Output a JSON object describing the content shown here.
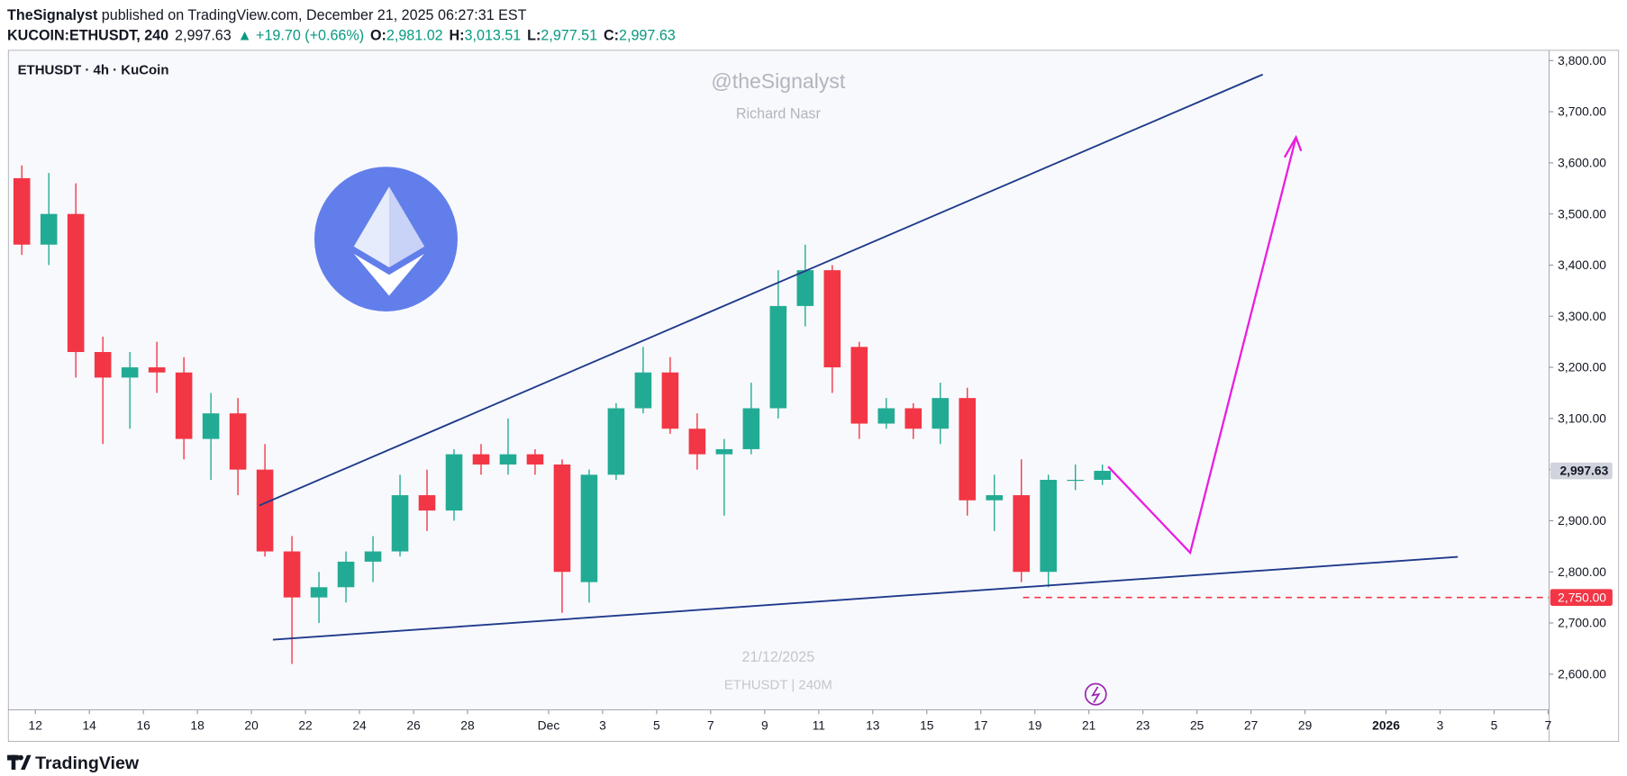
{
  "header": {
    "author": "TheSignalyst",
    "published": " published on TradingView.com, December 21, 2025 06:27:31 EST",
    "symbol": "KUCOIN:ETHUSDT, 240",
    "last": "2,997.63",
    "change": "▲ +19.70 (+0.66%)",
    "ohlc": [
      {
        "label": "O:",
        "value": "2,981.02"
      },
      {
        "label": "H:",
        "value": "3,013.51"
      },
      {
        "label": "L:",
        "value": "2,977.51"
      },
      {
        "label": "C:",
        "value": "2,997.63"
      }
    ]
  },
  "chart_data": {
    "type": "candlestick",
    "title": "ETHUSDT · 4h · KuCoin",
    "watermark": [
      "@theSignalyst",
      "Richard Nasr",
      "21/12/2025",
      "ETHUSDT | 240M"
    ],
    "up_color": "#22ab94",
    "down_color": "#f23645",
    "candles": [
      {
        "x": "2025-11-11",
        "open": 3570,
        "high": 3595,
        "low": 3420,
        "close": 3440
      },
      {
        "x": "2025-11-12",
        "open": 3440,
        "high": 3580,
        "low": 3400,
        "close": 3500
      },
      {
        "x": "2025-11-13",
        "open": 3500,
        "high": 3560,
        "low": 3180,
        "close": 3230
      },
      {
        "x": "2025-11-14",
        "open": 3230,
        "high": 3260,
        "low": 3050,
        "close": 3180
      },
      {
        "x": "2025-11-15",
        "open": 3180,
        "high": 3230,
        "low": 3080,
        "close": 3200
      },
      {
        "x": "2025-11-16",
        "open": 3200,
        "high": 3250,
        "low": 3150,
        "close": 3190
      },
      {
        "x": "2025-11-17",
        "open": 3190,
        "high": 3220,
        "low": 3020,
        "close": 3060
      },
      {
        "x": "2025-11-18",
        "open": 3060,
        "high": 3150,
        "low": 2980,
        "close": 3110
      },
      {
        "x": "2025-11-19",
        "open": 3110,
        "high": 3140,
        "low": 2950,
        "close": 3000
      },
      {
        "x": "2025-11-20",
        "open": 3000,
        "high": 3050,
        "low": 2830,
        "close": 2840
      },
      {
        "x": "2025-11-21",
        "open": 2840,
        "high": 2870,
        "low": 2620,
        "close": 2750
      },
      {
        "x": "2025-11-22",
        "open": 2750,
        "high": 2800,
        "low": 2700,
        "close": 2770
      },
      {
        "x": "2025-11-23",
        "open": 2770,
        "high": 2840,
        "low": 2740,
        "close": 2820
      },
      {
        "x": "2025-11-24",
        "open": 2820,
        "high": 2870,
        "low": 2780,
        "close": 2840
      },
      {
        "x": "2025-11-25",
        "open": 2840,
        "high": 2990,
        "low": 2830,
        "close": 2950
      },
      {
        "x": "2025-11-26",
        "open": 2950,
        "high": 3000,
        "low": 2880,
        "close": 2920
      },
      {
        "x": "2025-11-27",
        "open": 2920,
        "high": 3040,
        "low": 2900,
        "close": 3030
      },
      {
        "x": "2025-11-28",
        "open": 3030,
        "high": 3050,
        "low": 2990,
        "close": 3010
      },
      {
        "x": "2025-11-29",
        "open": 3010,
        "high": 3100,
        "low": 2990,
        "close": 3030
      },
      {
        "x": "2025-11-30",
        "open": 3030,
        "high": 3040,
        "low": 2990,
        "close": 3010
      },
      {
        "x": "2025-12-01",
        "open": 3010,
        "high": 3020,
        "low": 2720,
        "close": 2800
      },
      {
        "x": "2025-12-02",
        "open": 2780,
        "high": 3000,
        "low": 2740,
        "close": 2990
      },
      {
        "x": "2025-12-03",
        "open": 2990,
        "high": 3130,
        "low": 2980,
        "close": 3120
      },
      {
        "x": "2025-12-04",
        "open": 3120,
        "high": 3240,
        "low": 3110,
        "close": 3190
      },
      {
        "x": "2025-12-05",
        "open": 3190,
        "high": 3220,
        "low": 3070,
        "close": 3080
      },
      {
        "x": "2025-12-06",
        "open": 3080,
        "high": 3110,
        "low": 3000,
        "close": 3030
      },
      {
        "x": "2025-12-07",
        "open": 3030,
        "high": 3060,
        "low": 2910,
        "close": 3040
      },
      {
        "x": "2025-12-08",
        "open": 3040,
        "high": 3170,
        "low": 3030,
        "close": 3120
      },
      {
        "x": "2025-12-09",
        "open": 3120,
        "high": 3390,
        "low": 3100,
        "close": 3320
      },
      {
        "x": "2025-12-10",
        "open": 3320,
        "high": 3440,
        "low": 3280,
        "close": 3390
      },
      {
        "x": "2025-12-11",
        "open": 3390,
        "high": 3400,
        "low": 3150,
        "close": 3200
      },
      {
        "x": "2025-12-12",
        "open": 3240,
        "high": 3250,
        "low": 3060,
        "close": 3090
      },
      {
        "x": "2025-12-13",
        "open": 3090,
        "high": 3140,
        "low": 3080,
        "close": 3120
      },
      {
        "x": "2025-12-14",
        "open": 3120,
        "high": 3130,
        "low": 3060,
        "close": 3080
      },
      {
        "x": "2025-12-15",
        "open": 3080,
        "high": 3170,
        "low": 3050,
        "close": 3140
      },
      {
        "x": "2025-12-16",
        "open": 3140,
        "high": 3160,
        "low": 2910,
        "close": 2940
      },
      {
        "x": "2025-12-17",
        "open": 2940,
        "high": 2990,
        "low": 2880,
        "close": 2950
      },
      {
        "x": "2025-12-18",
        "open": 2950,
        "high": 3020,
        "low": 2780,
        "close": 2800
      },
      {
        "x": "2025-12-19",
        "open": 2800,
        "high": 2990,
        "low": 2770,
        "close": 2980
      },
      {
        "x": "2025-12-20",
        "open": 2980,
        "high": 3010,
        "low": 2960,
        "close": 2980
      },
      {
        "x": "2025-12-21",
        "open": 2980,
        "high": 3010,
        "low": 2970,
        "close": 2997.63
      }
    ],
    "xlim": [
      "2025-11-11",
      "2026-01-07"
    ],
    "xticks": [
      {
        "value": "2025-11-12",
        "label": "12"
      },
      {
        "value": "2025-11-14",
        "label": "14"
      },
      {
        "value": "2025-11-16",
        "label": "16"
      },
      {
        "value": "2025-11-18",
        "label": "18"
      },
      {
        "value": "2025-11-20",
        "label": "20"
      },
      {
        "value": "2025-11-22",
        "label": "22"
      },
      {
        "value": "2025-11-24",
        "label": "24"
      },
      {
        "value": "2025-11-26",
        "label": "26"
      },
      {
        "value": "2025-11-28",
        "label": "28"
      },
      {
        "value": "2025-12-01",
        "label": "Dec"
      },
      {
        "value": "2025-12-03",
        "label": "3"
      },
      {
        "value": "2025-12-05",
        "label": "5"
      },
      {
        "value": "2025-12-07",
        "label": "7"
      },
      {
        "value": "2025-12-09",
        "label": "9"
      },
      {
        "value": "2025-12-11",
        "label": "11"
      },
      {
        "value": "2025-12-13",
        "label": "13"
      },
      {
        "value": "2025-12-15",
        "label": "15"
      },
      {
        "value": "2025-12-17",
        "label": "17"
      },
      {
        "value": "2025-12-19",
        "label": "19"
      },
      {
        "value": "2025-12-21",
        "label": "21"
      },
      {
        "value": "2025-12-23",
        "label": "23"
      },
      {
        "value": "2025-12-25",
        "label": "25"
      },
      {
        "value": "2025-12-27",
        "label": "27"
      },
      {
        "value": "2025-12-29",
        "label": "29"
      },
      {
        "value": "2026-01-01",
        "label": "2026"
      },
      {
        "value": "2026-01-03",
        "label": "3"
      },
      {
        "value": "2026-01-05",
        "label": "5"
      },
      {
        "value": "2026-01-07",
        "label": "7"
      }
    ],
    "ylim": [
      2530,
      3820
    ],
    "yticks": [
      {
        "value": 2600,
        "label": "2,600.00"
      },
      {
        "value": 2700,
        "label": "2,700.00"
      },
      {
        "value": 2800,
        "label": "2,800.00"
      },
      {
        "value": 2900,
        "label": "2,900.00"
      },
      {
        "value": 3000,
        "label": "3,000.00"
      },
      {
        "value": 3100,
        "label": "3,100.00"
      },
      {
        "value": 3200,
        "label": "3,200.00"
      },
      {
        "value": 3300,
        "label": "3,300.00"
      },
      {
        "value": 3400,
        "label": "3,400.00"
      },
      {
        "value": 3500,
        "label": "3,500.00"
      },
      {
        "value": 3600,
        "label": "3,600.00"
      },
      {
        "value": 3700,
        "label": "3,700.00"
      },
      {
        "value": 3800,
        "label": "3,800.00"
      }
    ],
    "price_label": {
      "value": 2997.63,
      "label": "2,997.63"
    },
    "level": {
      "value": 2750,
      "label": "2,750.00",
      "color": "#f23645"
    }
  },
  "footer": {
    "brand": "TradingView"
  }
}
